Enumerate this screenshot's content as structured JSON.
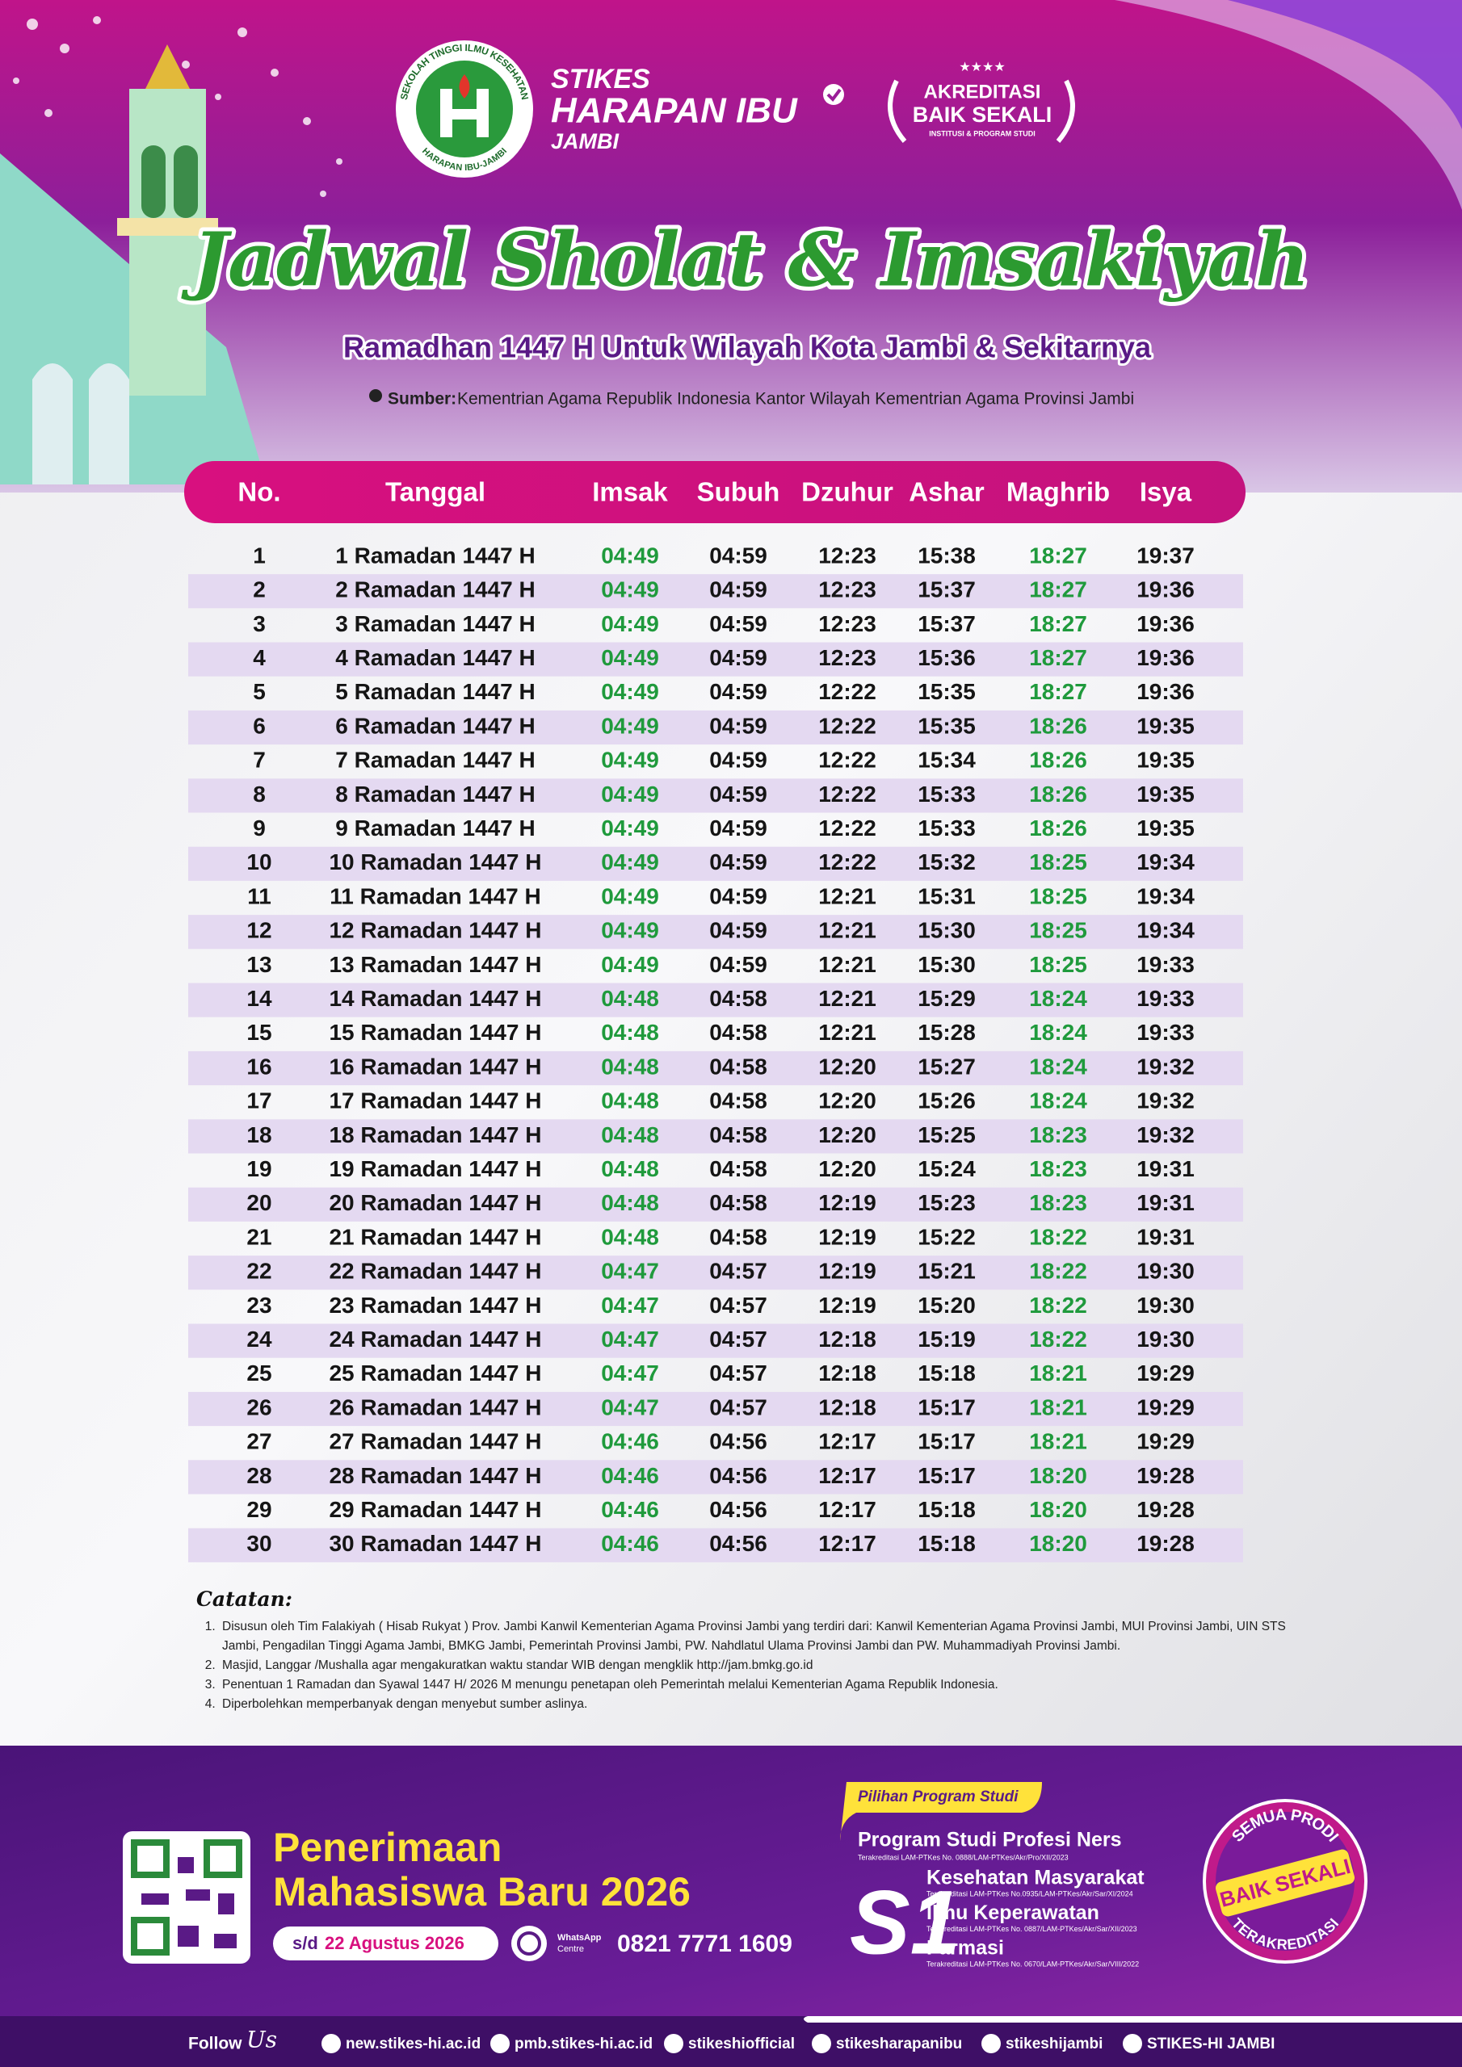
{
  "header": {
    "logo": {
      "top": "SEKOLAH TINGGI ILMU KESEHATAN",
      "bottom": "HARAPAN IBU-JAMBI"
    },
    "institution": {
      "line1": "STIKES",
      "line2": "HARAPAN IBU",
      "line3": "JAMBI"
    },
    "accreditation": {
      "line1": "AKREDITASI",
      "line2": "BAIK SEKALI",
      "line3": "INSTITUSI & PROGRAM STUDI"
    },
    "title": "Jadwal Sholat & Imsakiyah",
    "subtitle": "Ramadhan 1447 H Untuk Wilayah Kota Jambi & Sekitarnya",
    "source_label": "Sumber:",
    "source": "Kementrian Agama Republik Indonesia Kantor Wilayah Kementrian Agama Provinsi Jambi"
  },
  "table": {
    "columns": [
      "No.",
      "Tanggal",
      "Imsak",
      "Subuh",
      "Dzuhur",
      "Ashar",
      "Maghrib",
      "Isya"
    ],
    "rows": [
      [
        "1",
        "1 Ramadan 1447 H",
        "04:49",
        "04:59",
        "12:23",
        "15:38",
        "18:27",
        "19:37"
      ],
      [
        "2",
        "2 Ramadan 1447 H",
        "04:49",
        "04:59",
        "12:23",
        "15:37",
        "18:27",
        "19:36"
      ],
      [
        "3",
        "3 Ramadan 1447 H",
        "04:49",
        "04:59",
        "12:23",
        "15:37",
        "18:27",
        "19:36"
      ],
      [
        "4",
        "4 Ramadan 1447 H",
        "04:49",
        "04:59",
        "12:23",
        "15:36",
        "18:27",
        "19:36"
      ],
      [
        "5",
        "5 Ramadan 1447 H",
        "04:49",
        "04:59",
        "12:22",
        "15:35",
        "18:27",
        "19:36"
      ],
      [
        "6",
        "6 Ramadan 1447 H",
        "04:49",
        "04:59",
        "12:22",
        "15:35",
        "18:26",
        "19:35"
      ],
      [
        "7",
        "7 Ramadan 1447 H",
        "04:49",
        "04:59",
        "12:22",
        "15:34",
        "18:26",
        "19:35"
      ],
      [
        "8",
        "8 Ramadan 1447 H",
        "04:49",
        "04:59",
        "12:22",
        "15:33",
        "18:26",
        "19:35"
      ],
      [
        "9",
        "9 Ramadan 1447 H",
        "04:49",
        "04:59",
        "12:22",
        "15:33",
        "18:26",
        "19:35"
      ],
      [
        "10",
        "10 Ramadan 1447 H",
        "04:49",
        "04:59",
        "12:22",
        "15:32",
        "18:25",
        "19:34"
      ],
      [
        "11",
        "11 Ramadan 1447 H",
        "04:49",
        "04:59",
        "12:21",
        "15:31",
        "18:25",
        "19:34"
      ],
      [
        "12",
        "12 Ramadan 1447 H",
        "04:49",
        "04:59",
        "12:21",
        "15:30",
        "18:25",
        "19:34"
      ],
      [
        "13",
        "13 Ramadan 1447 H",
        "04:49",
        "04:59",
        "12:21",
        "15:30",
        "18:25",
        "19:33"
      ],
      [
        "14",
        "14 Ramadan 1447 H",
        "04:48",
        "04:58",
        "12:21",
        "15:29",
        "18:24",
        "19:33"
      ],
      [
        "15",
        "15 Ramadan 1447 H",
        "04:48",
        "04:58",
        "12:21",
        "15:28",
        "18:24",
        "19:33"
      ],
      [
        "16",
        "16 Ramadan 1447 H",
        "04:48",
        "04:58",
        "12:20",
        "15:27",
        "18:24",
        "19:32"
      ],
      [
        "17",
        "17 Ramadan 1447 H",
        "04:48",
        "04:58",
        "12:20",
        "15:26",
        "18:24",
        "19:32"
      ],
      [
        "18",
        "18 Ramadan 1447 H",
        "04:48",
        "04:58",
        "12:20",
        "15:25",
        "18:23",
        "19:32"
      ],
      [
        "19",
        "19 Ramadan 1447 H",
        "04:48",
        "04:58",
        "12:20",
        "15:24",
        "18:23",
        "19:31"
      ],
      [
        "20",
        "20 Ramadan 1447 H",
        "04:48",
        "04:58",
        "12:19",
        "15:23",
        "18:23",
        "19:31"
      ],
      [
        "21",
        "21 Ramadan 1447 H",
        "04:48",
        "04:58",
        "12:19",
        "15:22",
        "18:22",
        "19:31"
      ],
      [
        "22",
        "22 Ramadan 1447 H",
        "04:47",
        "04:57",
        "12:19",
        "15:21",
        "18:22",
        "19:30"
      ],
      [
        "23",
        "23 Ramadan 1447 H",
        "04:47",
        "04:57",
        "12:19",
        "15:20",
        "18:22",
        "19:30"
      ],
      [
        "24",
        "24 Ramadan 1447 H",
        "04:47",
        "04:57",
        "12:18",
        "15:19",
        "18:22",
        "19:30"
      ],
      [
        "25",
        "25 Ramadan 1447 H",
        "04:47",
        "04:57",
        "12:18",
        "15:18",
        "18:21",
        "19:29"
      ],
      [
        "26",
        "26 Ramadan 1447 H",
        "04:47",
        "04:57",
        "12:18",
        "15:17",
        "18:21",
        "19:29"
      ],
      [
        "27",
        "27 Ramadan 1447 H",
        "04:46",
        "04:56",
        "12:17",
        "15:17",
        "18:21",
        "19:29"
      ],
      [
        "28",
        "28 Ramadan 1447 H",
        "04:46",
        "04:56",
        "12:17",
        "15:17",
        "18:20",
        "19:28"
      ],
      [
        "29",
        "29 Ramadan 1447 H",
        "04:46",
        "04:56",
        "12:17",
        "15:18",
        "18:20",
        "19:28"
      ],
      [
        "30",
        "30 Ramadan 1447 H",
        "04:46",
        "04:56",
        "12:17",
        "15:18",
        "18:20",
        "19:28"
      ]
    ]
  },
  "notes": {
    "title": "Catatan:",
    "items": [
      "Disusun oleh Tim Falakiyah ( Hisab Rukyat ) Prov. Jambi Kanwil Kementerian Agama Provinsi Jambi yang terdiri dari: Kanwil Kementerian Agama Provinsi Jambi, MUI Provinsi Jambi, UIN STS Jambi, Pengadilan Tinggi Agama Jambi, BMKG Jambi, Pemerintah Provinsi Jambi, PW. Nahdlatul Ulama Provinsi Jambi dan PW. Muhammadiyah Provinsi Jambi.",
      "Masjid, Langgar /Mushalla agar mengakuratkan waktu standar WIB dengan mengklik http://jam.bmkg.go.id",
      "Penentuan 1 Ramadan dan Syawal 1447 H/ 2026 M menungu penetapan oleh Pemerintah melalui Kementerian Agama Republik Indonesia.",
      "Diperbolehkan memperbanyak dengan menyebut sumber aslinya."
    ]
  },
  "footer": {
    "admission": {
      "line1": "Penerimaan",
      "line2": "Mahasiswa Baru 2026",
      "until": "s/d",
      "deadline": "22 Agustus 2026"
    },
    "whatsapp": {
      "label": "WhatsApp",
      "sublabel": "Centre",
      "number": "0821 7771 1609"
    },
    "programs": {
      "label": "Pilihan Program Studi",
      "profession": {
        "name": "Program Studi Profesi Ners",
        "accreditation": "Terakreditasi LAM-PTKes No. 0888/LAM-PTKes/Akr/Pro/XII/2023"
      },
      "degree": "S1",
      "s1": [
        {
          "name": "Kesehatan Masyarakat",
          "accreditation": "Terakreditasi LAM-PTKes No.0935/LAM-PTKes/Akr/Sar/XI/2024"
        },
        {
          "name": "Ilmu Keperawatan",
          "accreditation": "Terakreditasi LAM-PTKes No. 0887/LAM-PTKes/Akr/Sar/XII/2023"
        },
        {
          "name": "Farmasi",
          "accreditation": "Terakreditasi LAM-PTKes No. 0670/LAM-PTKes/Akr/Sar/VIII/2022"
        }
      ]
    },
    "badge": {
      "top": "SEMUA PRODI",
      "middle": "BAIK SEKALI",
      "bottom": "TERAKREDITASI"
    },
    "follow": {
      "word": "Follow",
      "script": "Us"
    },
    "links": [
      "new.stikes-hi.ac.id",
      "pmb.stikes-hi.ac.id",
      "stikeshiofficial",
      "stikesharapanibu",
      "stikeshijambi",
      "STIKES-HI JAMBI"
    ]
  }
}
